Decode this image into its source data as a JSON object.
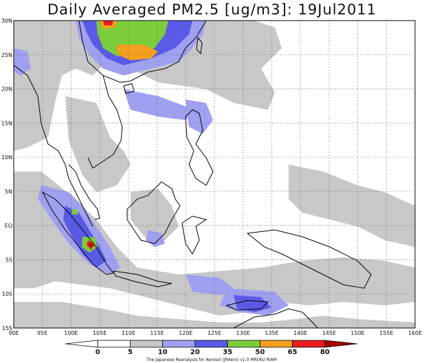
{
  "title": "Daily Averaged PM2.5 [ug/m3]: 19Jul2011",
  "axes": {
    "x_ticks": [
      "90E",
      "95E",
      "100E",
      "105E",
      "110E",
      "115E",
      "120E",
      "125E",
      "130E",
      "135E",
      "140E",
      "145E",
      "150E",
      "155E",
      "160E"
    ],
    "y_ticks": [
      "30N",
      "25N",
      "20N",
      "15N",
      "10N",
      "5N",
      "EQ",
      "5S",
      "10S",
      "15S"
    ]
  },
  "colorbar": {
    "levels": [
      "0",
      "5",
      "10",
      "20",
      "35",
      "50",
      "65",
      "80"
    ],
    "colors": [
      "#ffffff",
      "#ffffff",
      "#c8c8c8",
      "#a0a0f0",
      "#5a5ae6",
      "#7ccd3c",
      "#f5a01e",
      "#e61e1e",
      "#aa0000"
    ]
  },
  "credit": "The Japanese Reanalysis for Aerosol (JRAero) v1.0 MRI/KU RIAM",
  "colors": {
    "land_outline": "#000000",
    "grid": "#555555",
    "frame": "#000000"
  }
}
